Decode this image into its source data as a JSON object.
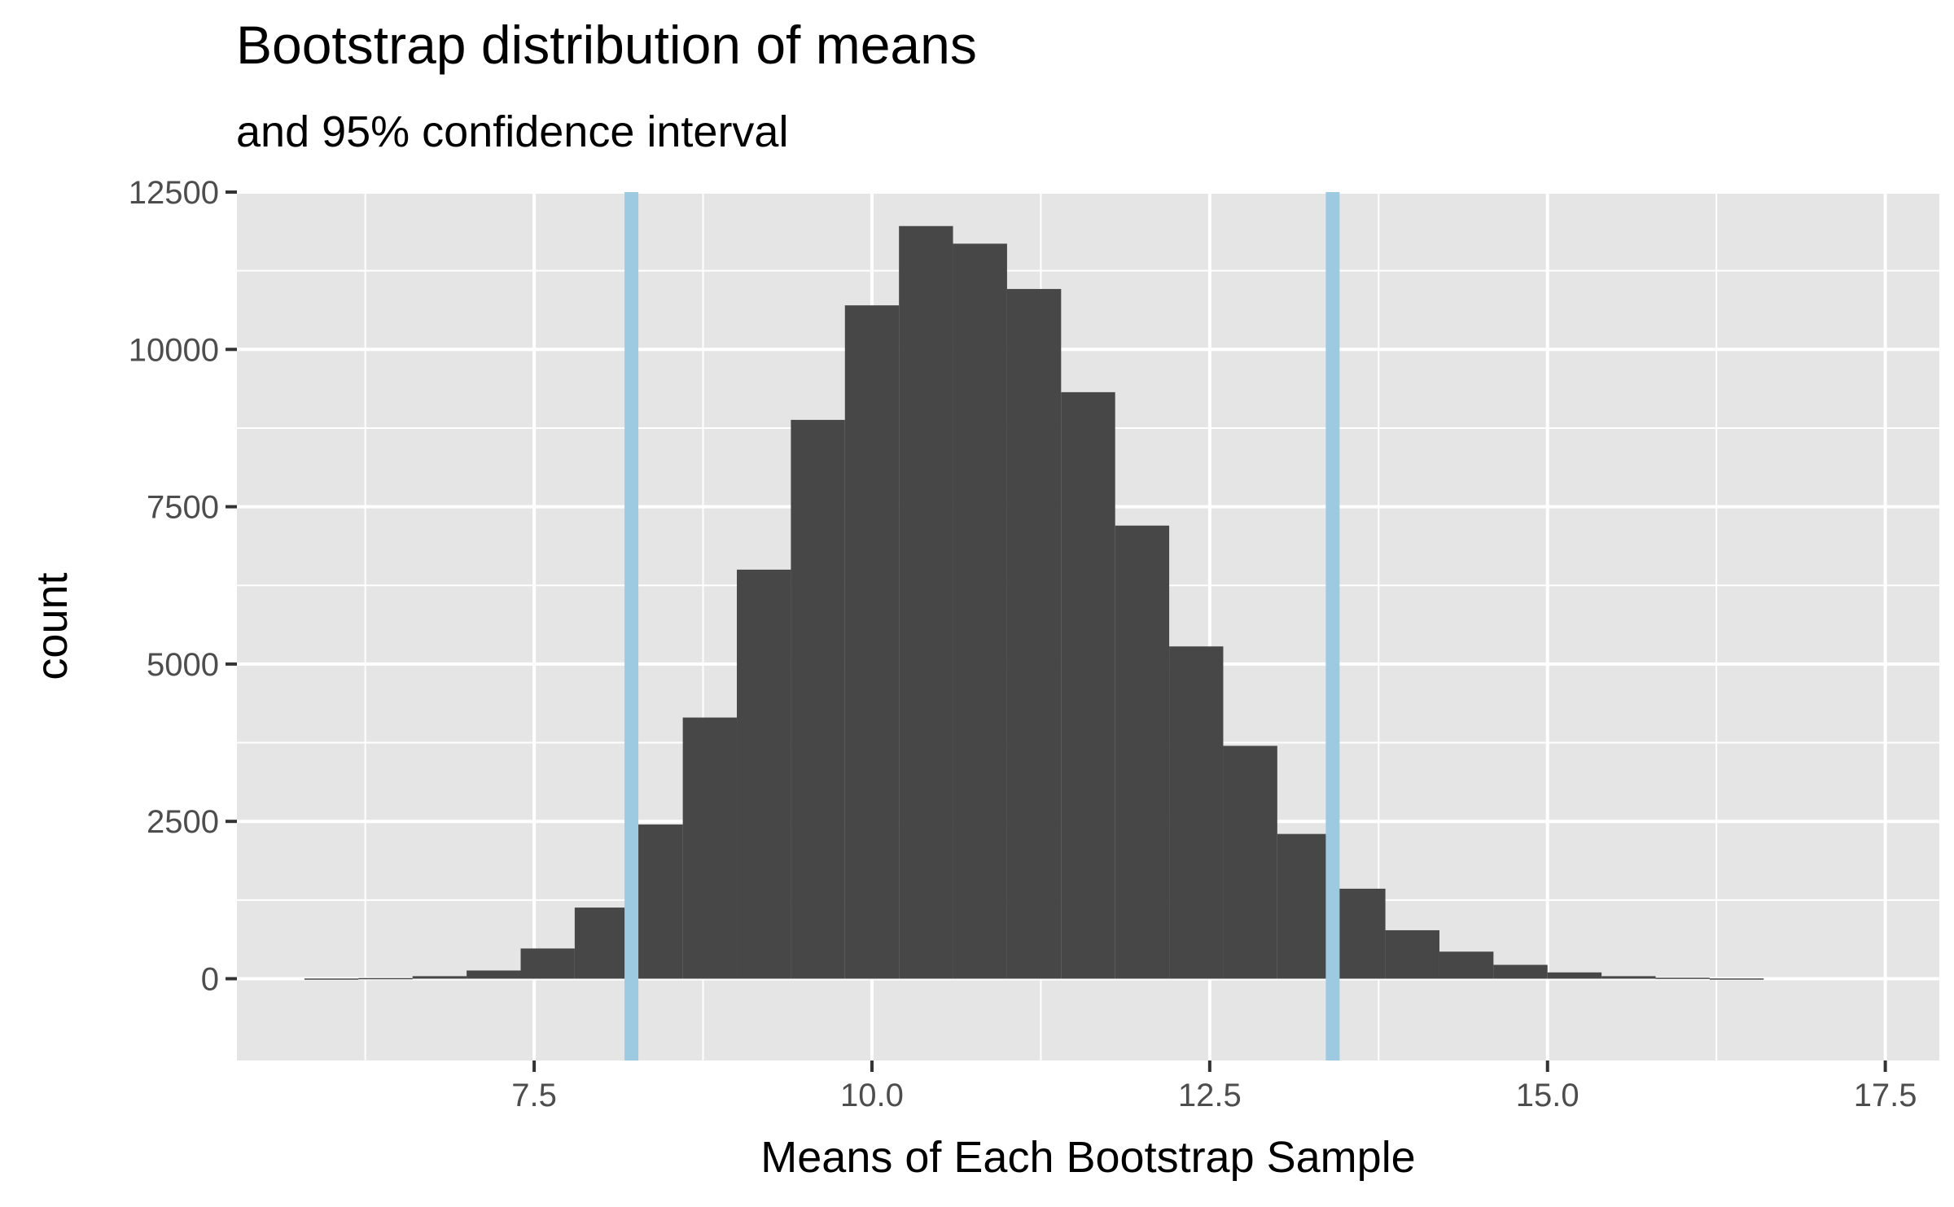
{
  "chart_data": {
    "type": "bar",
    "title": "Bootstrap distribution of means",
    "subtitle": "and 95% confidence interval",
    "xlabel": "Means of Each Bootstrap Sample",
    "ylabel": "count",
    "xlim": [
      5.3,
      17.9
    ],
    "ylim": [
      -1300,
      12500
    ],
    "xticks": [
      7.5,
      10.0,
      12.5,
      15.0,
      17.5
    ],
    "xtick_labels": [
      "7.5",
      "10.0",
      "12.5",
      "15.0",
      "17.5"
    ],
    "yticks": [
      0,
      2500,
      5000,
      7500,
      10000,
      12500
    ],
    "ytick_labels": [
      "0",
      "2500",
      "5000",
      "7500",
      "10000",
      "12500"
    ],
    "bin_width": 0.4,
    "bin_starts": [
      5.8,
      6.2,
      6.6,
      7.0,
      7.4,
      7.8,
      8.2,
      8.6,
      9.0,
      9.4,
      9.8,
      10.2,
      10.6,
      11.0,
      11.4,
      11.8,
      12.2,
      12.6,
      13.0,
      13.4,
      13.8,
      14.2,
      14.6,
      15.0,
      15.4,
      15.8,
      16.2
    ],
    "values": [
      3,
      10,
      40,
      130,
      480,
      1130,
      2450,
      4150,
      6500,
      8880,
      10700,
      11960,
      11680,
      10960,
      9320,
      7200,
      5280,
      3700,
      2300,
      1430,
      770,
      430,
      220,
      100,
      40,
      15,
      4
    ],
    "ci_lines": [
      8.22,
      13.41
    ],
    "ci_label": "95% confidence interval",
    "colors": {
      "bar_fill": "#474747",
      "ci_line": "#9ecae1",
      "panel_bg": "#e5e5e5",
      "grid": "#ffffff",
      "tick_text": "#4d4d4d"
    },
    "grid": true,
    "legend": "none"
  }
}
